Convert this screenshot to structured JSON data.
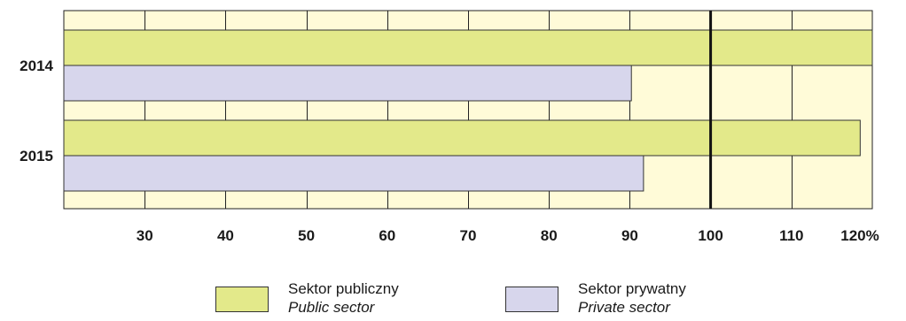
{
  "chart_data": {
    "type": "bar",
    "orientation": "horizontal",
    "categories": [
      "2014",
      "2015"
    ],
    "series": [
      {
        "name_pl": "Sektor publiczny",
        "name_en": "Public sector",
        "color": "#e3e98a",
        "values": [
          120,
          118.5
        ]
      },
      {
        "name_pl": "Sektor prywatny",
        "name_en": "Private sector",
        "color": "#d7d6ec",
        "values": [
          90.2,
          91.7
        ]
      }
    ],
    "x_ticks": [
      "30",
      "40",
      "50",
      "60",
      "70",
      "80",
      "90",
      "100",
      "110",
      "120%"
    ],
    "xlim": [
      20,
      120
    ],
    "reference_line": 100,
    "plot_background": "#fffbd8",
    "grid": true,
    "legend_position": "bottom"
  }
}
